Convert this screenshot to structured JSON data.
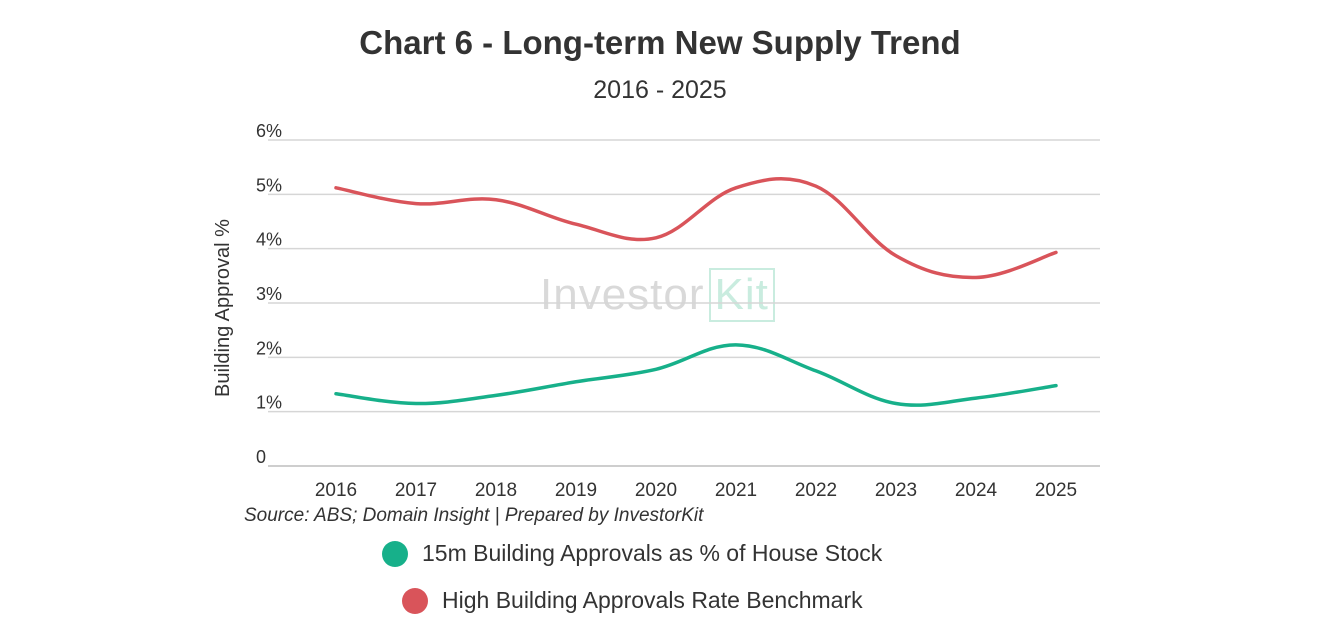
{
  "chart_data": {
    "type": "line",
    "title": "Chart 6 - Long-term New Supply Trend",
    "subtitle": "2016 - 2025",
    "ylabel": "Building Approval %",
    "xlabel": "",
    "categories": [
      "2016",
      "2017",
      "2018",
      "2019",
      "2020",
      "2021",
      "2022",
      "2023",
      "2024",
      "2025"
    ],
    "yticks": [
      0,
      1,
      2,
      3,
      4,
      5,
      6
    ],
    "ytick_labels": [
      "0",
      "1%",
      "2%",
      "3%",
      "4%",
      "5%",
      "6%"
    ],
    "ylim": [
      0,
      6
    ],
    "grid": true,
    "series": [
      {
        "name": "15m Building Approvals as % of House Stock",
        "color": "#17b08a",
        "values": [
          1.33,
          1.15,
          1.3,
          1.55,
          1.78,
          2.23,
          1.75,
          1.15,
          1.25,
          1.48
        ]
      },
      {
        "name": "High Building Approvals Rate Benchmark",
        "color": "#d9545a",
        "values": [
          5.12,
          4.83,
          4.9,
          4.45,
          4.2,
          5.12,
          5.15,
          3.87,
          3.47,
          3.93
        ]
      }
    ],
    "legend_position": "bottom",
    "source": "Source: ABS; Domain Insight | Prepared by InvestorKit",
    "watermark": {
      "text": "Investor",
      "boxed": "Kit"
    }
  }
}
